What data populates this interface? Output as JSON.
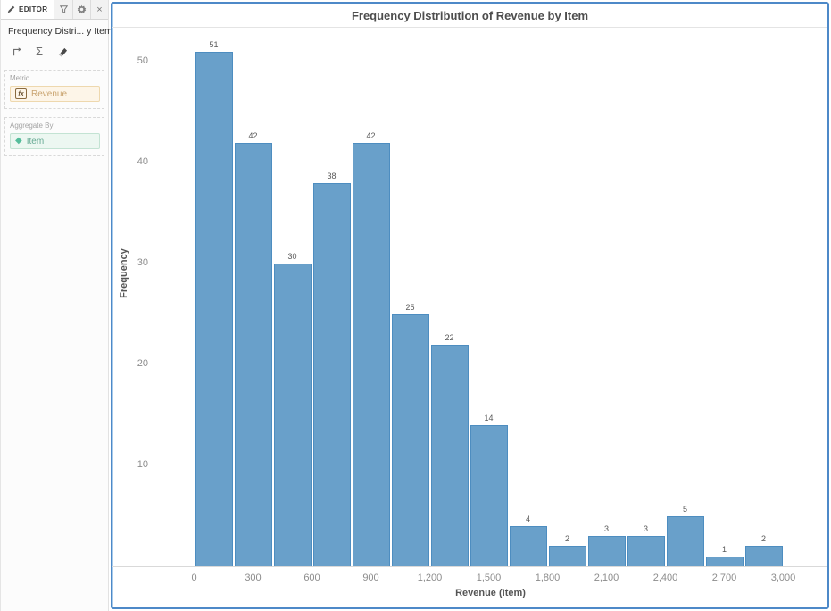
{
  "editor_panel": {
    "tabs": {
      "editor_label": "EDITOR"
    },
    "widget_title": "Frequency Distri... y Item",
    "icons": {
      "kebab_glyph": "⋮",
      "sigma_glyph": "Σ",
      "close_glyph": "×",
      "diamond_glyph": "◆",
      "fx_label": "fx"
    },
    "metric": {
      "label": "Metric",
      "value": "Revenue"
    },
    "aggregate_by": {
      "label": "Aggregate By",
      "value": "Item"
    }
  },
  "chart_data": {
    "type": "bar",
    "subtype": "histogram",
    "title": "Frequency Distribution of Revenue by Item",
    "xlabel": "Revenue (Item)",
    "ylabel": "Frequency",
    "bin_start": 0,
    "bin_width": 200,
    "values": [
      51,
      42,
      30,
      38,
      42,
      25,
      22,
      14,
      4,
      2,
      3,
      3,
      5,
      1,
      2
    ],
    "bar_labels": [
      "51",
      "42",
      "30",
      "38",
      "42",
      "25",
      "22",
      "14",
      "4",
      "2",
      "3",
      "3",
      "5",
      "1",
      "2"
    ],
    "x_ticks": [
      "0",
      "300",
      "600",
      "900",
      "1,200",
      "1,500",
      "1,800",
      "2,100",
      "2,400",
      "2,700",
      "3,000"
    ],
    "x_tick_values": [
      0,
      300,
      600,
      900,
      1200,
      1500,
      1800,
      2100,
      2400,
      2700,
      3000
    ],
    "y_ticks": [
      10,
      20,
      30,
      40,
      50
    ],
    "xlim": [
      0,
      3000
    ],
    "ylim": [
      0,
      53
    ],
    "grid": false,
    "legend": false,
    "colors": {
      "bar_fill": "#69a0ca",
      "bar_border": "#4d8dc0",
      "window_border": "#4d89c8",
      "axis_line": "#d9d9d9",
      "tick_text": "#8c8c8c"
    }
  }
}
